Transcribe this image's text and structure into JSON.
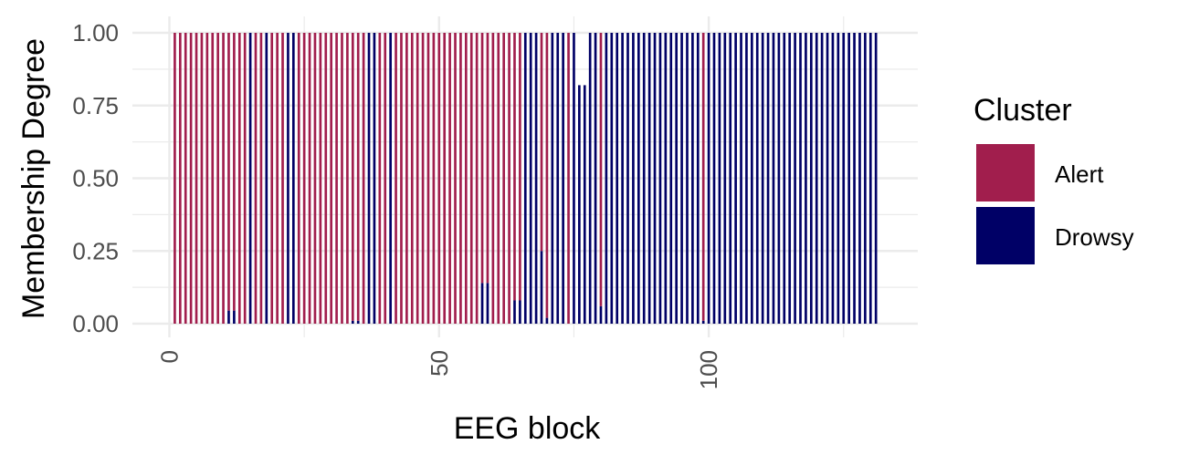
{
  "chart_data": {
    "type": "bar",
    "stacked": true,
    "title": "",
    "xlabel": "EEG block",
    "ylabel": "Membership Degree",
    "xlim": [
      0,
      132
    ],
    "ylim": [
      0,
      1
    ],
    "x_ticks": [
      0,
      50,
      100
    ],
    "x_tick_labels": [
      "0",
      "50",
      "100"
    ],
    "y_ticks": [
      0,
      0.25,
      0.5,
      0.75,
      1
    ],
    "y_tick_labels": [
      "0.00",
      "0.25",
      "0.50",
      "0.75",
      "1.00"
    ],
    "grid": true,
    "legend": {
      "title": "Cluster",
      "position": "right",
      "entries": [
        {
          "label": "Alert",
          "color": "#A11E4D"
        },
        {
          "label": "Drowsy",
          "color": "#000066"
        }
      ]
    },
    "x": [
      1,
      2,
      3,
      4,
      5,
      6,
      7,
      8,
      9,
      10,
      11,
      12,
      13,
      14,
      15,
      16,
      17,
      18,
      19,
      20,
      21,
      22,
      23,
      24,
      25,
      26,
      27,
      28,
      29,
      30,
      31,
      32,
      33,
      34,
      35,
      36,
      37,
      38,
      39,
      40,
      41,
      42,
      43,
      44,
      45,
      46,
      47,
      48,
      49,
      50,
      51,
      52,
      53,
      54,
      55,
      56,
      57,
      58,
      59,
      60,
      61,
      62,
      63,
      64,
      65,
      66,
      67,
      68,
      69,
      70,
      71,
      72,
      73,
      74,
      75,
      76,
      77,
      78,
      79,
      80,
      81,
      82,
      83,
      84,
      85,
      86,
      87,
      88,
      89,
      90,
      91,
      92,
      93,
      94,
      95,
      96,
      97,
      98,
      99,
      100,
      101,
      102,
      103,
      104,
      105,
      106,
      107,
      108,
      109,
      110,
      111,
      112,
      113,
      114,
      115,
      116,
      117,
      118,
      119,
      120,
      121,
      122,
      123,
      124,
      125,
      126,
      127,
      128,
      129,
      130,
      131
    ],
    "series": [
      {
        "name": "Alert",
        "values": [
          1,
          1,
          1,
          1,
          1,
          1,
          1,
          1,
          1,
          1,
          0.955,
          0.955,
          1,
          1,
          0,
          1,
          1,
          0,
          1,
          1,
          1,
          0,
          0,
          1,
          1,
          1,
          1,
          1,
          1,
          1,
          1,
          1,
          1,
          0.99,
          0.99,
          1,
          0,
          0,
          1,
          1,
          0,
          1,
          1,
          1,
          1,
          1,
          1,
          1,
          1,
          1,
          1,
          1,
          1,
          1,
          1,
          1,
          1,
          0.86,
          0.86,
          1,
          1,
          1,
          1,
          0.92,
          0.92,
          0,
          0,
          0,
          0.75,
          0.98,
          0,
          0,
          0,
          1,
          0,
          0,
          0,
          0,
          0,
          0.94,
          0,
          0,
          0,
          0,
          0,
          0,
          0,
          0,
          0,
          0,
          0,
          0,
          0,
          0,
          0,
          0,
          0,
          0,
          0.99,
          0,
          0,
          0,
          0,
          0,
          0,
          0,
          0,
          0,
          0,
          0,
          0,
          0,
          0,
          0,
          0,
          0,
          0,
          0,
          0,
          0,
          0,
          0,
          0,
          0,
          0,
          0,
          0,
          0,
          0,
          0,
          0
        ],
        "drowsy_values": [
          0,
          0,
          0,
          0,
          0,
          0,
          0,
          0,
          0,
          0,
          0.045,
          0.045,
          0,
          0,
          1,
          0,
          0,
          1,
          0,
          0,
          0,
          1,
          1,
          0,
          0,
          0,
          0,
          0,
          0,
          0,
          0,
          0,
          0,
          0.01,
          0.01,
          0,
          1,
          1,
          0,
          0,
          1,
          0,
          0,
          0,
          0,
          0,
          0,
          0,
          0,
          0,
          0,
          0,
          0,
          0,
          0,
          0,
          0,
          0.14,
          0.14,
          0,
          0,
          0,
          0,
          0.08,
          0.08,
          1,
          1,
          1,
          0.25,
          0.02,
          1,
          1,
          1,
          0,
          1,
          0.82,
          0.82,
          1,
          1,
          0.06,
          1,
          1,
          1,
          1,
          1,
          1,
          1,
          1,
          1,
          1,
          1,
          1,
          1,
          1,
          1,
          1,
          1,
          1,
          0.01,
          1,
          1,
          1,
          1,
          1,
          1,
          1,
          1,
          1,
          1,
          1,
          1,
          1,
          1,
          1,
          1,
          1,
          1,
          1,
          1,
          1,
          1,
          1,
          1,
          1,
          1,
          1,
          1,
          1,
          1,
          1,
          1
        ]
      },
      {
        "name": "Drowsy",
        "values": [
          0,
          0,
          0,
          0,
          0,
          0,
          0,
          0,
          0,
          0,
          0.045,
          0.045,
          0,
          0,
          1,
          0,
          0,
          1,
          0,
          0,
          0,
          1,
          1,
          0,
          0,
          0,
          0,
          0,
          0,
          0,
          0,
          0,
          0,
          0.01,
          0.01,
          0,
          1,
          1,
          0,
          0,
          1,
          0,
          0,
          0,
          0,
          0,
          0,
          0,
          0,
          0,
          0,
          0,
          0,
          0,
          0,
          0,
          0,
          0.14,
          0.14,
          0,
          0,
          0,
          0,
          0.08,
          0.08,
          1,
          1,
          1,
          0.25,
          0.02,
          1,
          1,
          1,
          0,
          1,
          0.82,
          0.82,
          1,
          1,
          0.06,
          1,
          1,
          1,
          1,
          1,
          1,
          1,
          1,
          1,
          1,
          1,
          1,
          1,
          1,
          1,
          1,
          1,
          1,
          0.01,
          1,
          1,
          1,
          1,
          1,
          1,
          1,
          1,
          1,
          1,
          1,
          1,
          1,
          1,
          1,
          1,
          1,
          1,
          1,
          1,
          1,
          1,
          1,
          1,
          1,
          1,
          1,
          1,
          1,
          1,
          1,
          1
        ]
      }
    ]
  }
}
